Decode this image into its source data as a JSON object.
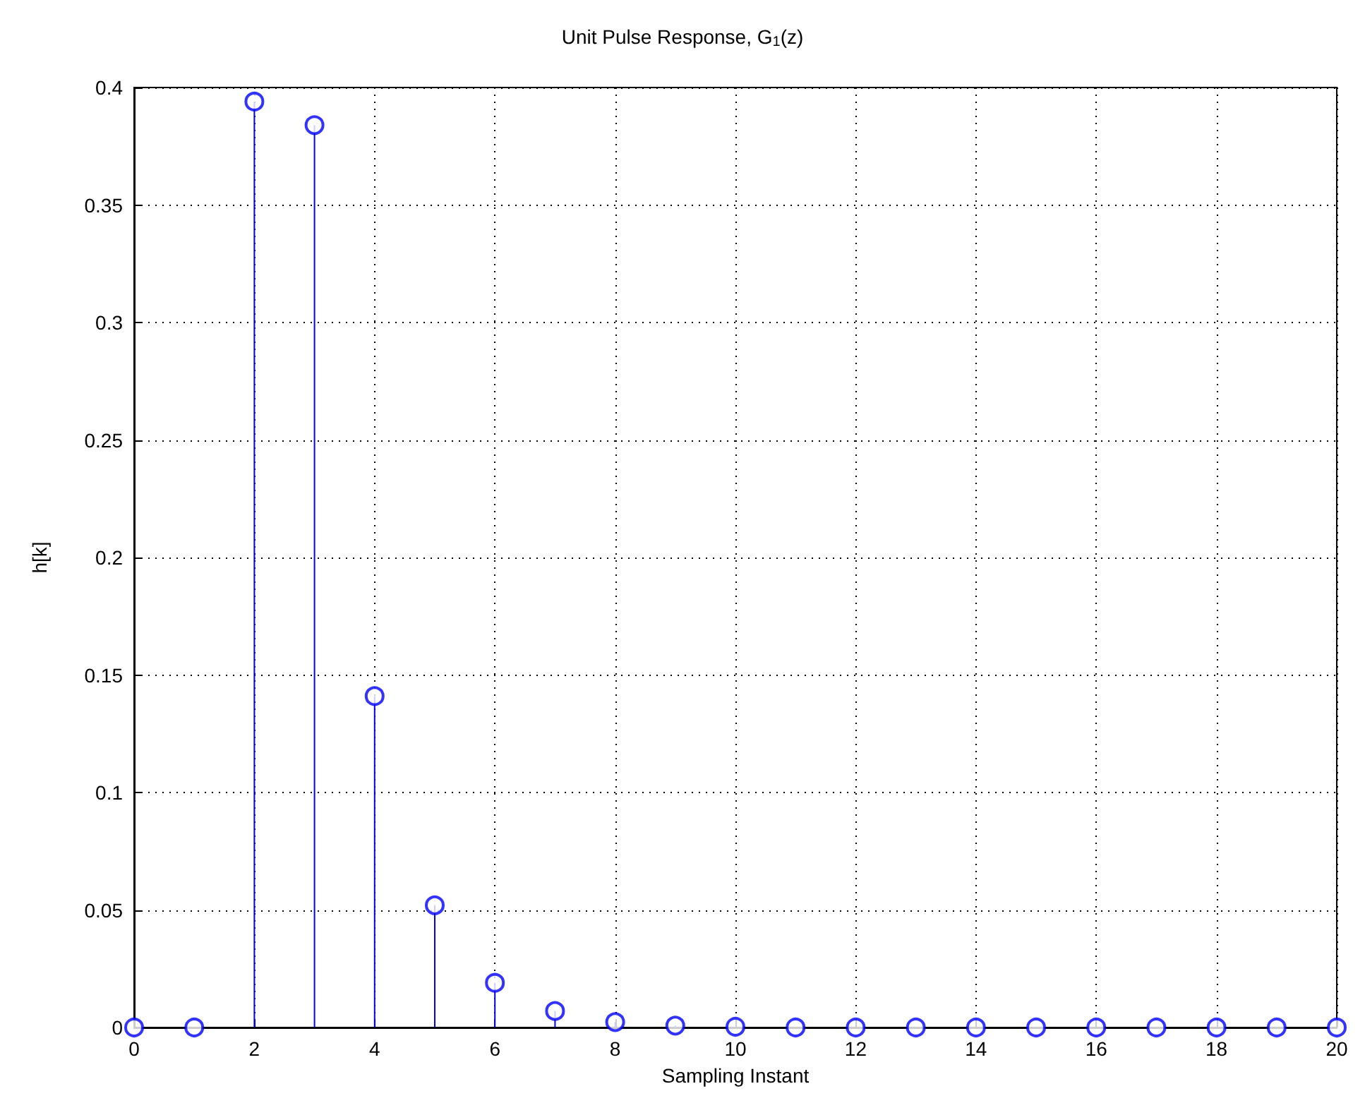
{
  "chart_data": {
    "type": "lollipop",
    "title": "Unit Pulse Response, G$_{1}$(z)",
    "xlabel": "Sampling Instant",
    "ylabel": "h[k]",
    "x": [
      0,
      1,
      2,
      3,
      4,
      5,
      6,
      7,
      8,
      9,
      10,
      11,
      12,
      13,
      14,
      15,
      16,
      17,
      18,
      19,
      20
    ],
    "series": [
      {
        "color": "#0000ff",
        "values": [
          0,
          0,
          0.394,
          0.384,
          0.141,
          0.052,
          0.019,
          0.007,
          0.0023,
          0.0008,
          0.0003,
          0,
          0,
          0,
          0,
          0,
          0,
          0,
          0,
          0,
          0
        ]
      }
    ],
    "xlim": [
      0,
      20
    ],
    "xticks": [
      0,
      2,
      4,
      6,
      8,
      10,
      12,
      14,
      16,
      18,
      20
    ],
    "ylim": [
      0,
      0.4
    ],
    "yticks": [
      0,
      0.05,
      0.1,
      0.15,
      0.2,
      0.25,
      0.3,
      0.35,
      0.4
    ],
    "grid": true,
    "marker": "circle",
    "line_style": "solid"
  }
}
